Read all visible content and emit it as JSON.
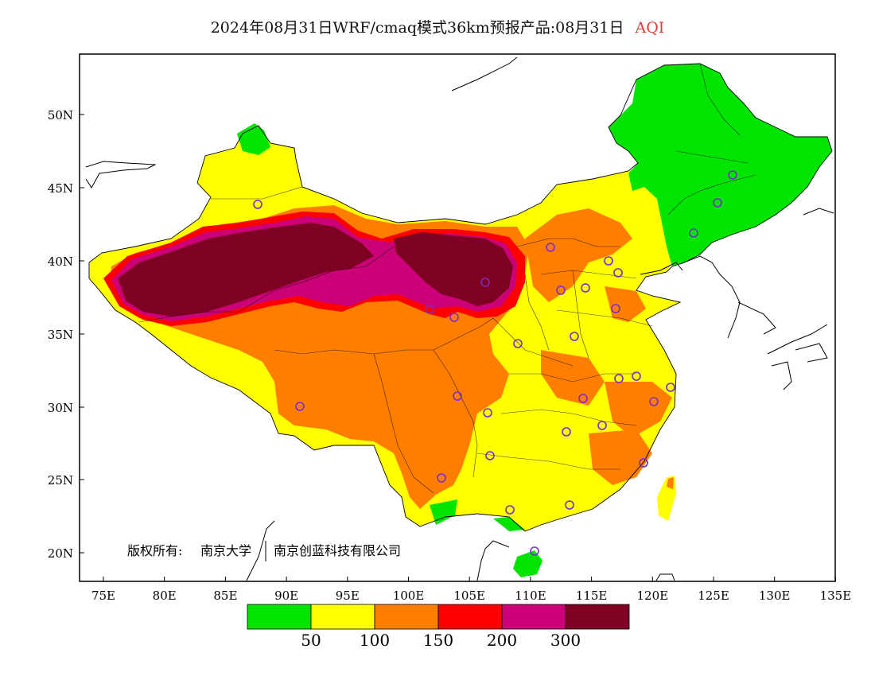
{
  "title": {
    "main": "2024年08月31日WRF/cmaq模式36km预报产品:08月31日",
    "variable": "AQI",
    "variable_color": "#e03a3a"
  },
  "axes": {
    "lat_labels": [
      "50N",
      "45N",
      "40N",
      "35N",
      "30N",
      "25N",
      "20N"
    ],
    "lon_labels": [
      "75E",
      "80E",
      "85E",
      "90E",
      "95E",
      "100E",
      "105E",
      "110E",
      "115E",
      "120E",
      "125E",
      "130E",
      "135E"
    ]
  },
  "copyright": {
    "label": "版权所有:",
    "org1": "南京大学",
    "org2": "南京创蓝科技有限公司"
  },
  "legend": {
    "colors": [
      "#00e400",
      "#ffff00",
      "#ff7e00",
      "#ff0000",
      "#cc0077",
      "#7e0023"
    ],
    "labels": [
      "50",
      "100",
      "150",
      "200",
      "300"
    ]
  },
  "stations_note": "purple circles mark cities",
  "colors": {
    "good": "#00e400",
    "moderate": "#ffff00",
    "usg": "#ff7e00",
    "unhealthy": "#ff0000",
    "very_unhealthy": "#cc0077",
    "hazardous": "#7e0023",
    "station": "#7a2cc8"
  }
}
